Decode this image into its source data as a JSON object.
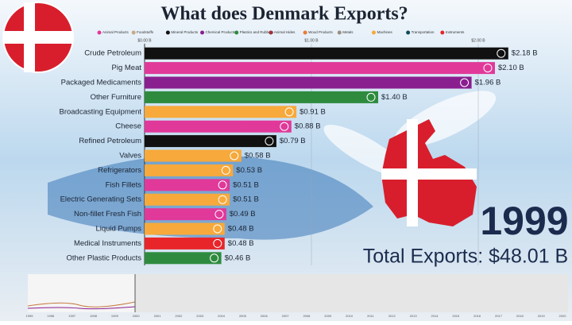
{
  "chart_data": {
    "type": "bar",
    "orientation": "horizontal",
    "title": "What does Denmark Exports?",
    "legend": [
      {
        "name": "Animal Products",
        "color": "#e0399a"
      },
      {
        "name": "Foodstuffs",
        "color": "#c9a98a"
      },
      {
        "name": "Mineral Products",
        "color": "#111111"
      },
      {
        "name": "Chemical Products",
        "color": "#8a1f8f"
      },
      {
        "name": "Plastics and Rubbers",
        "color": "#2e8b3e"
      },
      {
        "name": "Animal Hides",
        "color": "#a0323c"
      },
      {
        "name": "Wood Products",
        "color": "#e87c3a"
      },
      {
        "name": "Metals",
        "color": "#9a8f80"
      },
      {
        "name": "Machines",
        "color": "#f7a93b"
      },
      {
        "name": "Transportation",
        "color": "#0f4a5a"
      },
      {
        "name": "Instruments",
        "color": "#e8262a"
      }
    ],
    "categories": [
      "Crude Petroleum",
      "Pig Meat",
      "Packaged Medicaments",
      "Other Furniture",
      "Broadcasting Equipment",
      "Cheese",
      "Refined Petroleum",
      "Valves",
      "Refrigerators",
      "Fish Fillets",
      "Electric Generating Sets",
      "Non-fillet Fresh Fish",
      "Liquid Pumps",
      "Medical Instruments",
      "Other Plastic Products"
    ],
    "values": [
      2.18,
      2.1,
      1.96,
      1.4,
      0.91,
      0.88,
      0.79,
      0.58,
      0.53,
      0.51,
      0.51,
      0.49,
      0.48,
      0.48,
      0.46
    ],
    "value_labels": [
      "$2.18 B",
      "$2.10 B",
      "$1.96 B",
      "$1.40 B",
      "$0.91 B",
      "$0.88 B",
      "$0.79 B",
      "$0.58 B",
      "$0.53 B",
      "$0.51 B",
      "$0.51 B",
      "$0.49 B",
      "$0.48 B",
      "$0.48 B",
      "$0.46 B"
    ],
    "colors": [
      "#111111",
      "#e0399a",
      "#8a1f8f",
      "#2e8b3e",
      "#f7a93b",
      "#e0399a",
      "#111111",
      "#f7a93b",
      "#f7a93b",
      "#e0399a",
      "#f7a93b",
      "#e0399a",
      "#f7a93b",
      "#e8262a",
      "#2e8b3e"
    ],
    "xlim": [
      0,
      2.5
    ],
    "xticks": [
      {
        "value": 0,
        "label": "$0.00 B"
      },
      {
        "value": 1,
        "label": "$1.00 B"
      },
      {
        "value": 2,
        "label": "$2.00 B"
      }
    ],
    "grid": true,
    "year": "1999",
    "total": "Total Exports: $48.01 B",
    "timeline_years": [
      "1995",
      "1996",
      "1997",
      "1998",
      "1999",
      "2000",
      "2001",
      "2002",
      "2003",
      "2004",
      "2005",
      "2006",
      "2007",
      "2008",
      "2009",
      "2010",
      "2011",
      "2012",
      "2013",
      "2014",
      "2015",
      "2016",
      "2017",
      "2018",
      "2019",
      "2020"
    ]
  }
}
